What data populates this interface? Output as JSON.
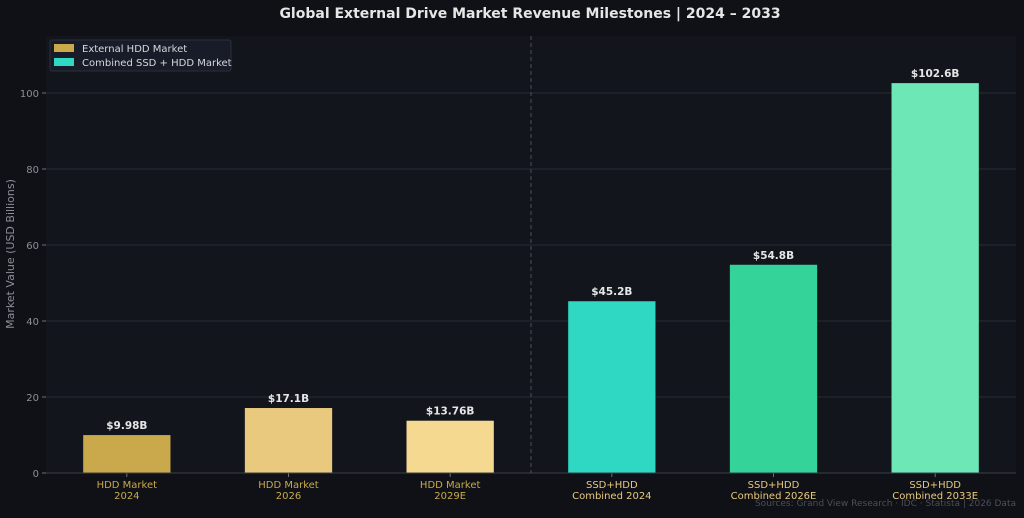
{
  "chart_data": {
    "type": "bar",
    "title": "Global External Drive Market Revenue Milestones  |  2024 – 2033",
    "ylabel": "Market Value (USD Billions)",
    "xlabel": "",
    "ylim": [
      0,
      115
    ],
    "yticks": [
      0,
      20,
      40,
      60,
      80,
      100
    ],
    "grid": true,
    "legend_position": "top-left",
    "legend": [
      {
        "label": "External HDD Market",
        "color": "#c9a94c"
      },
      {
        "label": "Combined SSD + HDD Market",
        "color": "#2ed8c3"
      }
    ],
    "bars": [
      {
        "label_line1": "HDD Market",
        "label_line2": "2024",
        "value": 9.98,
        "value_label": "$9.98B",
        "color": "#c9a94c",
        "group": "External HDD Market"
      },
      {
        "label_line1": "HDD Market",
        "label_line2": "2026",
        "value": 17.1,
        "value_label": "$17.1B",
        "color": "#e8c97d",
        "group": "External HDD Market"
      },
      {
        "label_line1": "HDD Market",
        "label_line2": "2029E",
        "value": 13.76,
        "value_label": "$13.76B",
        "color": "#f5d990",
        "group": "External HDD Market"
      },
      {
        "label_line1": "SSD+HDD",
        "label_line2": "Combined 2024",
        "value": 45.2,
        "value_label": "$45.2B",
        "color": "#2ed8c3",
        "group": "Combined SSD + HDD Market"
      },
      {
        "label_line1": "SSD+HDD",
        "label_line2": "Combined 2026E",
        "value": 54.8,
        "value_label": "$54.8B",
        "color": "#34d399",
        "group": "Combined SSD + HDD Market"
      },
      {
        "label_line1": "SSD+HDD",
        "label_line2": "Combined 2033E",
        "value": 102.6,
        "value_label": "$102.6B",
        "color": "#6ee7b7",
        "group": "Combined SSD + HDD Market"
      }
    ],
    "xtick_color_hdd": "#c9a94c",
    "xtick_color_combined": "#e8c97d",
    "divider": true
  },
  "footer": {
    "source": "Sources: Grand View Research · IDC · Statista  |  2026 Data"
  }
}
